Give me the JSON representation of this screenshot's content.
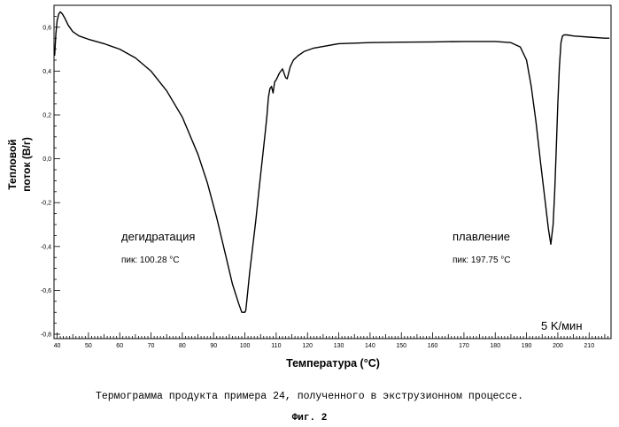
{
  "chart_data": {
    "type": "line",
    "xlabel": "Температура (°C)",
    "ylabel": "Тепловой поток (В/г)",
    "ylabel_lines": [
      "Тепловой",
      "поток (В/г)"
    ],
    "xlim": [
      39,
      217
    ],
    "ylim": [
      -0.82,
      0.7
    ],
    "x_ticks": [
      40,
      50,
      60,
      70,
      80,
      90,
      100,
      110,
      120,
      130,
      140,
      150,
      160,
      170,
      180,
      190,
      200,
      210
    ],
    "x_tick_labels": [
      "40",
      "50",
      "60",
      "70",
      "80",
      "90",
      "100",
      "110",
      "120",
      "130",
      "140",
      "150",
      "160",
      "170",
      "180",
      "190",
      "200",
      "210"
    ],
    "y_ticks": [
      0.6,
      0.4,
      0.2,
      0.0,
      -0.2,
      -0.4,
      -0.6,
      -0.8
    ],
    "y_tick_labels": [
      "0,6",
      "0,4",
      "0,2",
      "0,0",
      "-0,2",
      "-0,4",
      "-0,6",
      "-0,8"
    ],
    "grid": false,
    "series": [
      {
        "color": "#000000",
        "x": [
          39.2,
          39.6,
          40.0,
          40.5,
          41.0,
          41.7,
          42.5,
          43.5,
          45.0,
          47.0,
          50.0,
          55.0,
          60.0,
          65.0,
          70.0,
          75.0,
          80.0,
          85.0,
          88.0,
          91.0,
          94.0,
          96.0,
          98.0,
          99.0,
          100.0,
          100.3,
          100.8,
          101.5,
          102.5,
          103.5,
          104.5,
          105.5,
          106.5,
          107.0,
          107.5,
          108.0,
          108.5,
          109.0,
          109.5,
          110.0,
          111.0,
          112.0,
          113.0,
          113.5,
          114.5,
          115.5,
          117.0,
          119.0,
          122.0,
          126.0,
          130.0,
          140.0,
          150.0,
          160.0,
          170.0,
          180.0,
          185.0,
          188.0,
          190.0,
          191.5,
          193.0,
          194.5,
          196.0,
          197.0,
          197.75,
          198.5,
          199.0,
          199.5,
          200.0,
          200.5,
          201.0,
          201.5,
          202.0,
          203.0,
          205.0,
          210.0,
          215.0,
          216.5
        ],
        "y": [
          0.47,
          0.57,
          0.63,
          0.66,
          0.67,
          0.66,
          0.64,
          0.61,
          0.58,
          0.56,
          0.545,
          0.525,
          0.5,
          0.46,
          0.4,
          0.31,
          0.19,
          0.02,
          -0.11,
          -0.27,
          -0.45,
          -0.57,
          -0.66,
          -0.7,
          -0.7,
          -0.69,
          -0.62,
          -0.52,
          -0.4,
          -0.28,
          -0.14,
          -0.01,
          0.12,
          0.19,
          0.28,
          0.32,
          0.33,
          0.3,
          0.35,
          0.36,
          0.39,
          0.41,
          0.37,
          0.365,
          0.42,
          0.45,
          0.47,
          0.49,
          0.505,
          0.515,
          0.525,
          0.53,
          0.532,
          0.533,
          0.535,
          0.535,
          0.53,
          0.51,
          0.45,
          0.33,
          0.17,
          -0.02,
          -0.2,
          -0.32,
          -0.39,
          -0.3,
          -0.15,
          0.05,
          0.25,
          0.42,
          0.53,
          0.56,
          0.565,
          0.565,
          0.56,
          0.555,
          0.55,
          0.55
        ]
      }
    ],
    "annotations": [
      {
        "id": "dehydration",
        "title": "дегидратация",
        "peak": "пик: 100.28 °C"
      },
      {
        "id": "melting",
        "title": "плавление",
        "peak": "пик: 197.75 °C"
      }
    ],
    "rate_label": "5 K/мин"
  },
  "caption": "Термограмма продукта примера 24, полученного в экструзионном процессе.",
  "figure_label": "Фиг. 2"
}
